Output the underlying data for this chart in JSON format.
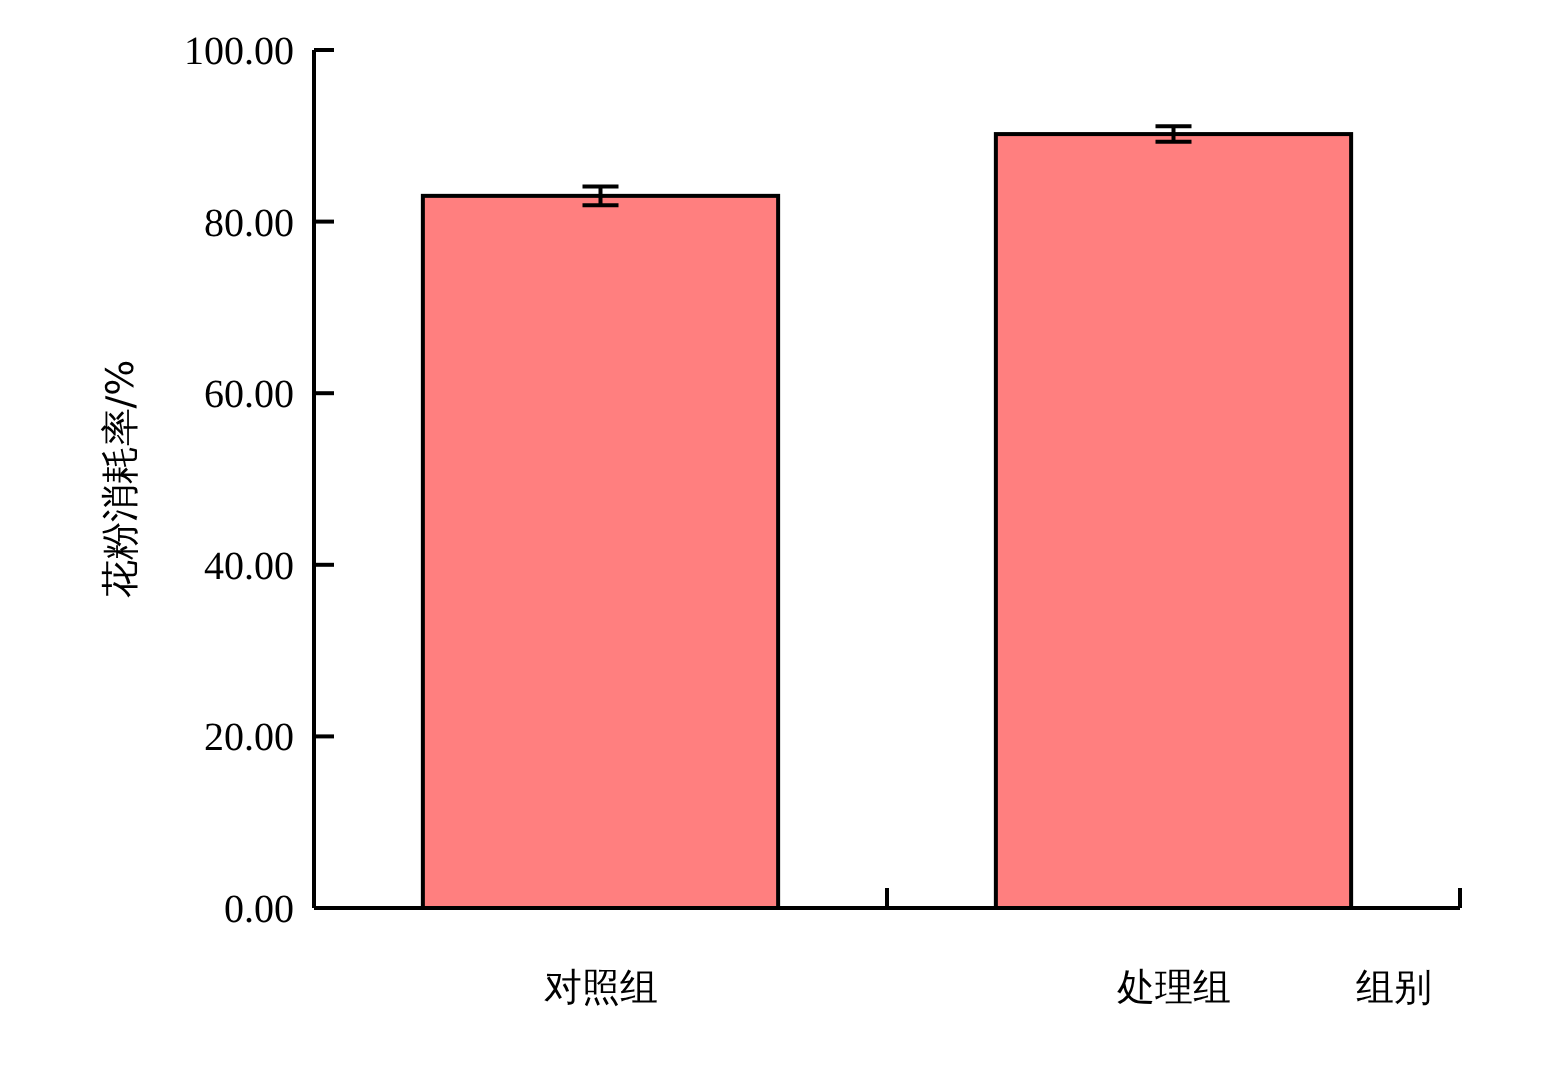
{
  "chart_data": {
    "type": "bar",
    "categories": [
      "对照组",
      "处理组"
    ],
    "values": [
      83.0,
      90.2
    ],
    "errors": [
      1.1,
      0.9
    ],
    "color": "#ff7f7f",
    "xlabel": "组别",
    "ylabel": "花粉消耗率/%",
    "ylim": [
      0,
      100
    ],
    "yticks": [
      {
        "value": 0,
        "label": "0.00"
      },
      {
        "value": 20,
        "label": "20.00"
      },
      {
        "value": 40,
        "label": "40.00"
      },
      {
        "value": 60,
        "label": "60.00"
      },
      {
        "value": 80,
        "label": "80.00"
      },
      {
        "value": 100,
        "label": "100.00"
      }
    ],
    "grid": false
  }
}
